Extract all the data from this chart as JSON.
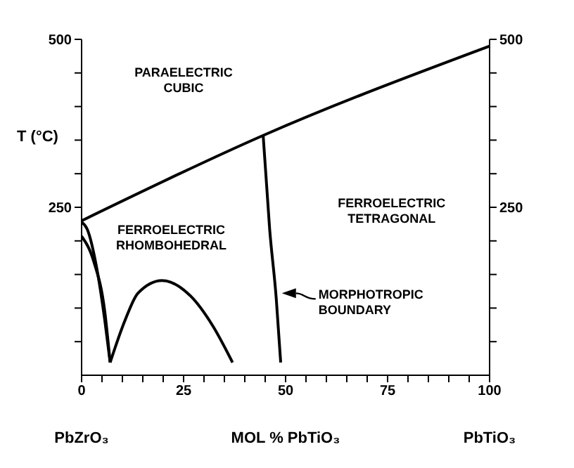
{
  "chart_data": {
    "type": "line",
    "ylabel": "T (°C)",
    "xlabel": "MOL % PbTiO₃",
    "xlim": [
      0,
      100
    ],
    "ylim": [
      0,
      500
    ],
    "y2lim": [
      0,
      500
    ],
    "xticks": [
      0,
      {
        "value": 5,
        "label": null
      },
      {
        "value": 10,
        "label": null
      },
      {
        "value": 15,
        "label": null
      },
      {
        "value": 20,
        "label": null
      },
      25,
      {
        "value": 30,
        "label": null
      },
      {
        "value": 35,
        "label": null
      },
      {
        "value": 40,
        "label": null
      },
      {
        "value": 45,
        "label": null
      },
      50,
      {
        "value": 55,
        "label": null
      },
      {
        "value": 60,
        "label": null
      },
      {
        "value": 65,
        "label": null
      },
      {
        "value": 70,
        "label": null
      },
      75,
      {
        "value": 80,
        "label": null
      },
      {
        "value": 85,
        "label": null
      },
      {
        "value": 90,
        "label": null
      },
      {
        "value": 95,
        "label": null
      },
      100
    ],
    "yticks": [
      {
        "value": 50,
        "label": null
      },
      {
        "value": 100,
        "label": null
      },
      {
        "value": 150,
        "label": null
      },
      {
        "value": 200,
        "label": null
      },
      250,
      {
        "value": 300,
        "label": null
      },
      {
        "value": 350,
        "label": null
      },
      {
        "value": 400,
        "label": null
      },
      {
        "value": 450,
        "label": null
      },
      500
    ],
    "y2ticks": [
      {
        "value": 50,
        "label": null
      },
      {
        "value": 100,
        "label": null
      },
      {
        "value": 150,
        "label": null
      },
      {
        "value": 200,
        "label": null
      },
      250,
      {
        "value": 300,
        "label": null
      },
      {
        "value": 350,
        "label": null
      },
      {
        "value": 400,
        "label": null
      },
      {
        "value": 450,
        "label": null
      },
      500
    ],
    "marker": "none",
    "line_style": "solid",
    "series": [
      {
        "color": "#000000",
        "x": [
          0,
          44.5,
          100
        ],
        "values": [
          230,
          357,
          490
        ]
      },
      {
        "color": "#000000",
        "x": [
          44.5,
          46.1,
          47.7,
          48.8
        ],
        "values": [
          357,
          217,
          115,
          19
        ]
      },
      {
        "color": "#000000",
        "x": [
          0,
          1.4,
          3.6,
          5.7,
          7
        ],
        "values": [
          228,
          217,
          163,
          81,
          19
        ]
      },
      {
        "color": "#000000",
        "x": [
          0,
          3,
          5.7,
          7
        ],
        "values": [
          207,
          169,
          94,
          19
        ]
      },
      {
        "color": "#000000",
        "x": [
          7,
          10.6,
          13.8,
          19.7,
          26.7,
          32.1,
          37
        ],
        "values": [
          19,
          81,
          122,
          141,
          118,
          74,
          19
        ]
      }
    ],
    "annotations": [
      "PARAELECTRIC CUBIC",
      "FERROELECTRIC RHOMBOHEDRAL",
      "FERROELECTRIC TETRAGONAL",
      "MORPHOTROPIC BOUNDARY",
      "PbZrO₃",
      "PbTiO₃"
    ]
  }
}
